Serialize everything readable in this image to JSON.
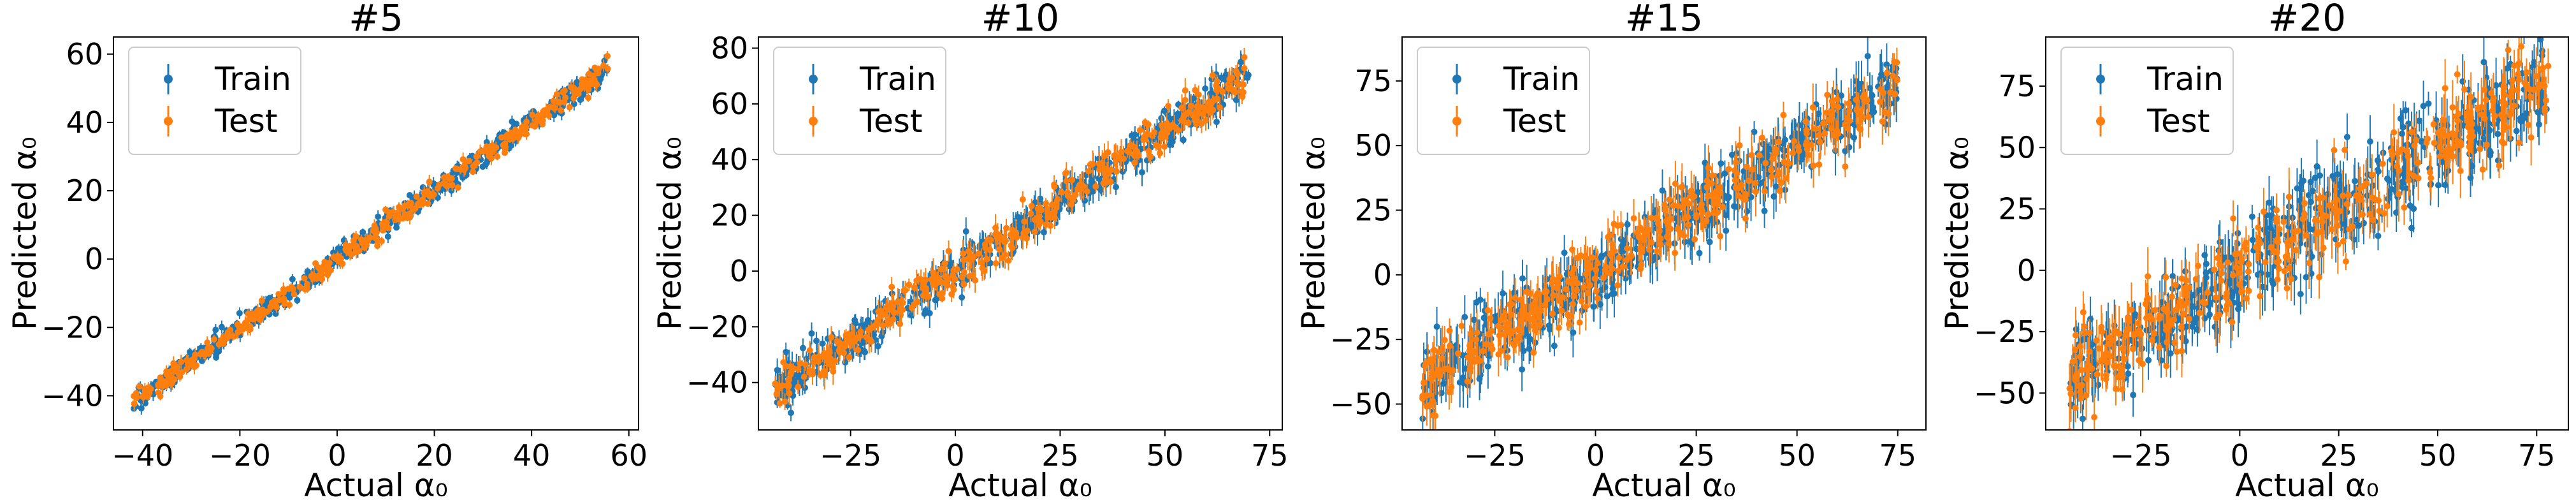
{
  "figure": {
    "colors": {
      "train": "#1f77b4",
      "test": "#ff7f0e",
      "axis": "#000000"
    }
  },
  "chart_data": [
    {
      "type": "scatter",
      "title": "#5",
      "xlabel": "Actual α₀",
      "ylabel": "Predicted α₀",
      "xlim": [
        -46,
        62
      ],
      "ylim": [
        -50,
        65
      ],
      "xticks": [
        -40,
        -20,
        0,
        20,
        40,
        60
      ],
      "yticks": [
        -40,
        -20,
        0,
        20,
        40,
        60
      ],
      "x_range": [
        -42,
        56
      ],
      "noise": 1.6,
      "err": 1.4,
      "legend_position": "upper left",
      "series": [
        {
          "name": "Train",
          "color": "#1f77b4"
        },
        {
          "name": "Test",
          "color": "#ff7f0e"
        }
      ]
    },
    {
      "type": "scatter",
      "title": "#10",
      "xlabel": "Actual α₀",
      "ylabel": "Predicted α₀",
      "xlim": [
        -47,
        78
      ],
      "ylim": [
        -57,
        84
      ],
      "xticks": [
        -25,
        0,
        25,
        50,
        75
      ],
      "yticks": [
        -40,
        -20,
        0,
        20,
        40,
        60,
        80
      ],
      "x_range": [
        -43,
        70
      ],
      "noise": 3.5,
      "err": 3.5,
      "legend_position": "upper left",
      "series": [
        {
          "name": "Train",
          "color": "#1f77b4"
        },
        {
          "name": "Test",
          "color": "#ff7f0e"
        }
      ]
    },
    {
      "type": "scatter",
      "title": "#15",
      "xlabel": "Actual α₀",
      "ylabel": "Predicted α₀",
      "xlim": [
        -48,
        82
      ],
      "ylim": [
        -60,
        92
      ],
      "xticks": [
        -25,
        0,
        25,
        50,
        75
      ],
      "yticks": [
        -50,
        -25,
        0,
        25,
        50,
        75
      ],
      "x_range": [
        -43,
        75
      ],
      "noise": 6.5,
      "err": 6.5,
      "legend_position": "upper left",
      "series": [
        {
          "name": "Train",
          "color": "#1f77b4"
        },
        {
          "name": "Test",
          "color": "#ff7f0e"
        }
      ]
    },
    {
      "type": "scatter",
      "title": "#20",
      "xlabel": "Actual α₀",
      "ylabel": "Predicted α₀",
      "xlim": [
        -49,
        83
      ],
      "ylim": [
        -65,
        95
      ],
      "xticks": [
        -25,
        0,
        25,
        50,
        75
      ],
      "yticks": [
        -50,
        -25,
        0,
        25,
        50,
        75
      ],
      "x_range": [
        -43,
        78
      ],
      "noise": 9,
      "err": 8,
      "legend_position": "upper left",
      "series": [
        {
          "name": "Train",
          "color": "#1f77b4"
        },
        {
          "name": "Test",
          "color": "#ff7f0e"
        }
      ]
    }
  ]
}
